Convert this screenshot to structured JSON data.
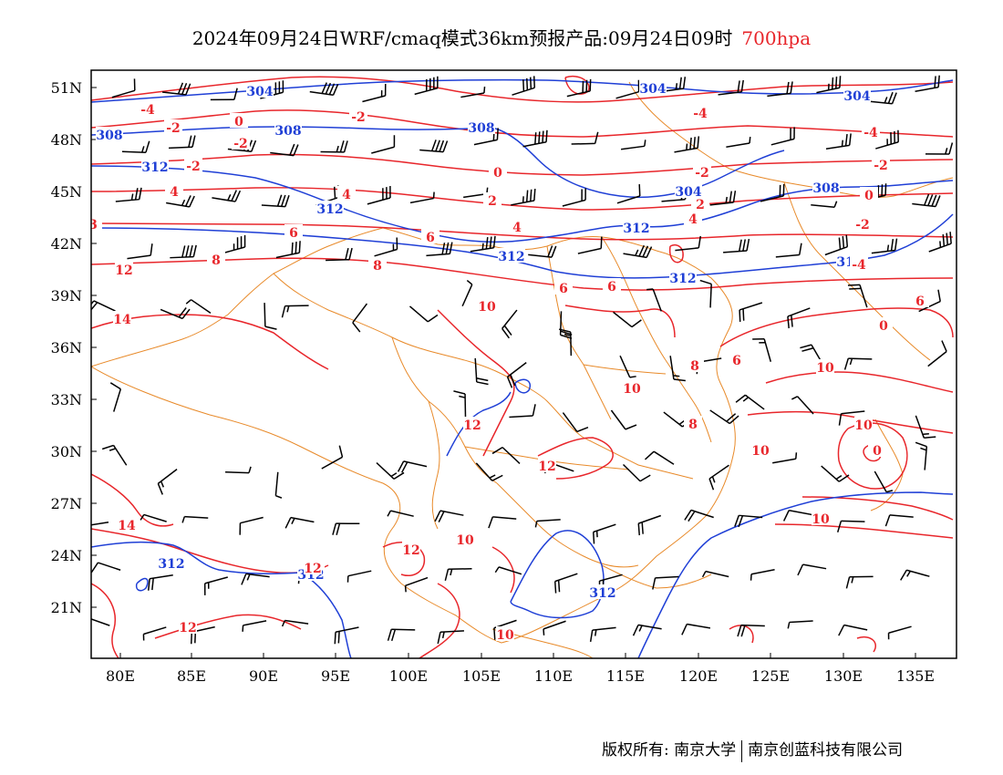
{
  "title": {
    "main": "2024年09月24日WRF/cmaq模式36km预报产品:09月24日09时",
    "level": "700hpa"
  },
  "axes": {
    "lat_labels": [
      "51N",
      "48N",
      "45N",
      "42N",
      "39N",
      "36N",
      "33N",
      "30N",
      "27N",
      "24N",
      "21N"
    ],
    "lon_labels": [
      "80E",
      "85E",
      "90E",
      "95E",
      "100E",
      "105E",
      "110E",
      "115E",
      "120E",
      "125E",
      "130E",
      "135E"
    ]
  },
  "colors": {
    "temperature_contour": "#e8262b",
    "height_contour": "#1f3fd6",
    "border": "#e88a2a",
    "wind_barb": "#000000"
  },
  "height_labels": [
    "304",
    "304",
    "304",
    "304",
    "308",
    "308",
    "308",
    "308",
    "312",
    "312",
    "312",
    "312",
    "312",
    "312",
    "312",
    "312",
    "312"
  ],
  "temperature_labels": [
    "-4",
    "-4",
    "-4",
    "-2",
    "-2",
    "-2",
    "-2",
    "-2",
    "-2",
    "-2",
    "0",
    "0",
    "0",
    "0",
    "2",
    "2",
    "3",
    "4",
    "4",
    "4",
    "4",
    "6",
    "6",
    "6",
    "6",
    "6",
    "6",
    "8",
    "8",
    "8",
    "8",
    "10",
    "10",
    "10",
    "10",
    "10",
    "10",
    "10",
    "10",
    "12",
    "12",
    "12",
    "12",
    "12",
    "12",
    "14",
    "14",
    "0",
    "-4"
  ],
  "copyright": {
    "left": "版权所有: 南京大学",
    "right": "南京创蓝科技有限公司"
  }
}
